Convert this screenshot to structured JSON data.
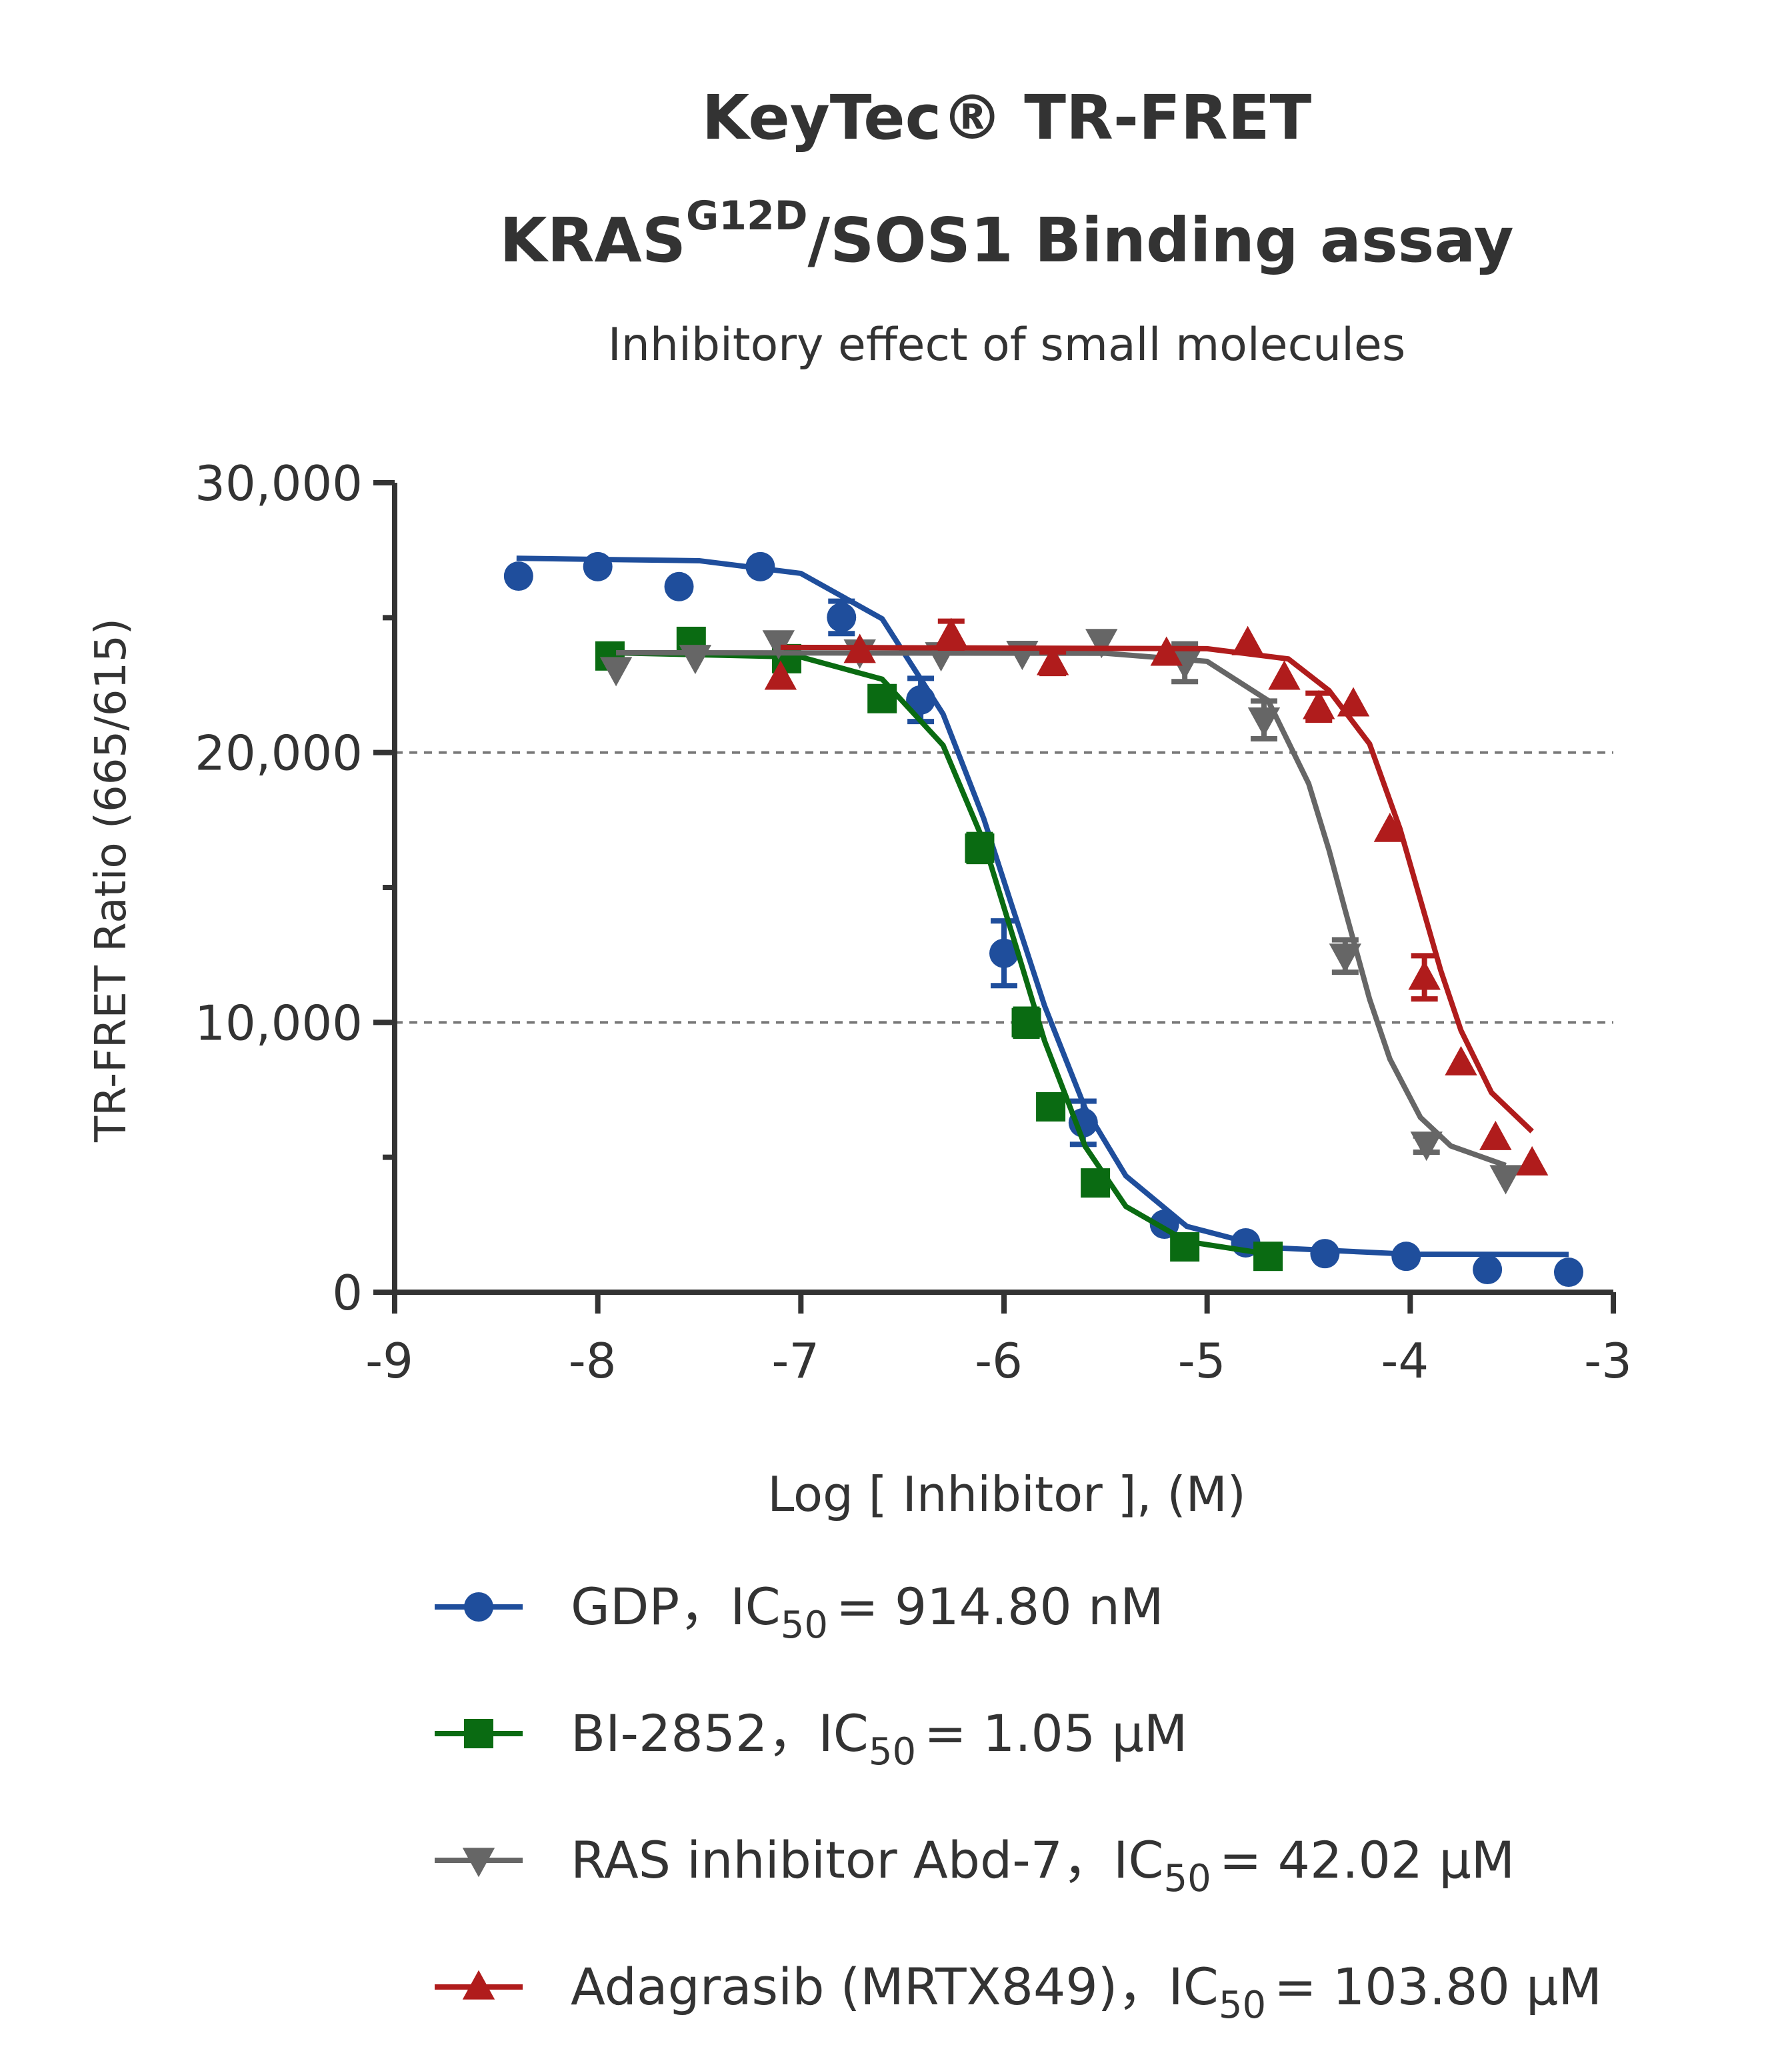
{
  "chart_data": {
    "type": "scatter",
    "title": {
      "line1": "KeyTec® TR-FRET",
      "line2_main": "KRAS",
      "line2_sup": "G12D",
      "line2_rest": "/SOS1 Binding assay"
    },
    "subtitle": "Inhibitory effect of small molecules",
    "x_label": "Log [ Inhibitor ], (M)",
    "y_label": "TR-FRET Ratio (665/615)",
    "xlim": [
      -9,
      -3
    ],
    "ylim": [
      0,
      30000
    ],
    "xticks": [
      -9,
      -8,
      -7,
      -6,
      -5,
      -4,
      -3
    ],
    "yticks": [
      0,
      {
        "value": 10000,
        "label": "10,000"
      },
      {
        "value": 20000,
        "label": "20,000"
      },
      {
        "value": 30000,
        "label": "30,000"
      }
    ],
    "yminor": [
      5000,
      15000,
      25000
    ],
    "grid_values": [
      10000,
      20000
    ],
    "series": [
      {
        "name": "GDP",
        "label_prefix": "，IC",
        "label_sub": "50",
        "label_value": "= 914.80 nM",
        "color": "#1f4e9c",
        "marker": "circle",
        "x": [
          -8.39,
          -8.0,
          -7.6,
          -7.2,
          -6.8,
          -6.41,
          -6.0,
          -5.61,
          -5.21,
          -4.81,
          -4.42,
          -4.02,
          -3.62,
          -3.22
        ],
        "values": [
          26540,
          26890,
          26150,
          26890,
          25010,
          21950,
          12560,
          6280,
          2520,
          1830,
          1430,
          1330,
          840,
          740
        ],
        "errors": [
          0,
          0,
          0,
          0,
          600,
          800,
          1200,
          800,
          0,
          0,
          0,
          0,
          0,
          0
        ],
        "fit": {
          "x": [
            -8.4,
            -7.5,
            -7.0,
            -6.6,
            -6.3,
            -6.1,
            -5.96,
            -5.8,
            -5.6,
            -5.4,
            -5.1,
            -4.7,
            -4.0,
            -3.22
          ],
          "values": [
            27200,
            27110,
            26640,
            24960,
            21430,
            17560,
            14300,
            10610,
            6810,
            4310,
            2440,
            1655,
            1410,
            1400
          ]
        }
      },
      {
        "name": "BI-2852",
        "label_prefix": "，IC",
        "label_sub": "50",
        "label_value": "= 1.05 µM",
        "color": "#0a6b12",
        "marker": "square",
        "x": [
          -7.94,
          -7.54,
          -7.07,
          -6.6,
          -6.12,
          -5.89,
          -5.77,
          -5.55,
          -5.11,
          -4.7
        ],
        "values": [
          23580,
          24120,
          23480,
          22000,
          16460,
          9990,
          6870,
          4050,
          1680,
          1330
        ],
        "errors": [
          0,
          0,
          0,
          0,
          500,
          500,
          0,
          0,
          0,
          200
        ],
        "fit": {
          "x": [
            -7.94,
            -7.0,
            -6.6,
            -6.3,
            -6.1,
            -5.93,
            -5.8,
            -5.6,
            -5.4,
            -5.1,
            -4.7
          ],
          "values": [
            23700,
            23540,
            22720,
            20270,
            16700,
            12550,
            9310,
            5400,
            3180,
            1880,
            1415
          ]
        }
      },
      {
        "name": "RAS inhibitor Abd-7",
        "label_prefix": "，IC",
        "label_sub": "50",
        "label_value": "= 42.02 µM",
        "color": "#666666",
        "marker": "down",
        "x": [
          -7.91,
          -7.52,
          -7.11,
          -6.71,
          -6.31,
          -5.91,
          -5.52,
          -5.11,
          -4.72,
          -4.32,
          -3.92,
          -3.53
        ],
        "values": [
          23080,
          23530,
          24070,
          23730,
          23630,
          23680,
          24120,
          23330,
          21210,
          12460,
          5490,
          4250
        ],
        "errors": [
          0,
          0,
          0,
          0,
          0,
          0,
          0,
          700,
          700,
          600,
          300,
          0
        ],
        "fit": {
          "x": [
            -7.91,
            -5.5,
            -5.0,
            -4.7,
            -4.5,
            -4.4,
            -4.32,
            -4.2,
            -4.1,
            -3.95,
            -3.8,
            -3.53
          ],
          "values": [
            23700,
            23680,
            23380,
            21930,
            18850,
            16390,
            14150,
            10860,
            8640,
            6480,
            5420,
            4700
          ]
        }
      },
      {
        "name": "Adagrasib (MRTX849)",
        "label_prefix": "，IC",
        "label_sub": "50",
        "label_value": "= 103.80 µM",
        "color": "#b01c1c",
        "marker": "up",
        "x": [
          -7.1,
          -6.71,
          -6.26,
          -5.76,
          -5.2,
          -4.8,
          -4.62,
          -4.45,
          -4.28,
          -4.1,
          -3.93,
          -3.75,
          -3.58,
          -3.4
        ],
        "values": [
          22790,
          23780,
          24370,
          23330,
          23680,
          24070,
          22790,
          21700,
          21800,
          17150,
          11670,
          8500,
          5730,
          4790
        ],
        "errors": [
          0,
          0,
          500,
          400,
          0,
          0,
          0,
          500,
          0,
          0,
          800,
          0,
          0,
          0
        ],
        "fit": {
          "x": [
            -7.1,
            -5.0,
            -4.6,
            -4.4,
            -4.2,
            -4.05,
            -3.95,
            -3.85,
            -3.75,
            -3.6,
            -3.4
          ],
          "values": [
            23900,
            23850,
            23470,
            22300,
            20320,
            17170,
            14550,
            11930,
            9700,
            7400,
            5960
          ]
        }
      }
    ]
  }
}
